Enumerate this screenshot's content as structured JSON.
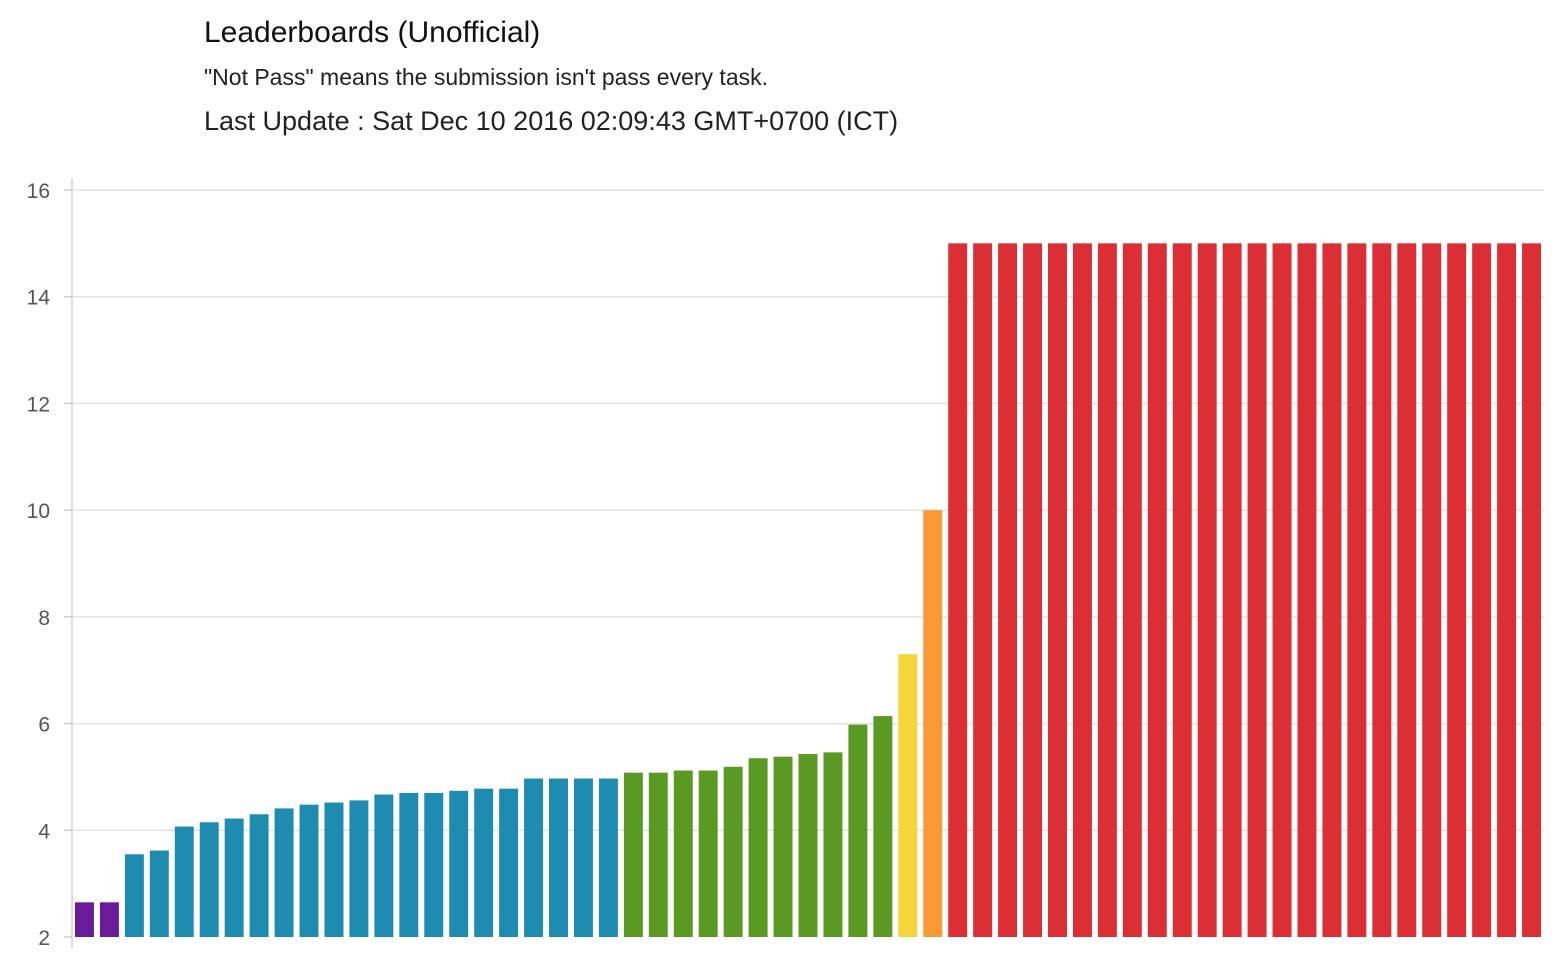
{
  "header": {
    "title": "Leaderboards (Unofficial)",
    "subtitle": "\"Not Pass\" means the submission isn't pass every task.",
    "last_update": "Last Update : Sat Dec 10 2016 02:09:43 GMT+0700 (ICT)"
  },
  "chart_data": {
    "type": "bar",
    "title": "",
    "xlabel": "",
    "ylabel": "",
    "ylim": [
      2,
      16
    ],
    "yticks": [
      2,
      4,
      6,
      8,
      10,
      12,
      14,
      16
    ],
    "grid": true,
    "legend": "none",
    "values": [
      2.65,
      2.65,
      3.55,
      3.62,
      4.07,
      4.15,
      4.22,
      4.3,
      4.41,
      4.48,
      4.52,
      4.56,
      4.67,
      4.7,
      4.7,
      4.74,
      4.78,
      4.78,
      4.97,
      4.97,
      4.97,
      4.97,
      5.08,
      5.08,
      5.12,
      5.12,
      5.19,
      5.35,
      5.38,
      5.43,
      5.46,
      5.98,
      6.14,
      7.3,
      10.0,
      15,
      15,
      15,
      15,
      15,
      15,
      15,
      15,
      15,
      15,
      15,
      15,
      15,
      15,
      15,
      15,
      15,
      15,
      15,
      15,
      15,
      15,
      15,
      15
    ],
    "colors": [
      "#6a1b9a",
      "#6a1b9a",
      "#1e8bb0",
      "#1e8bb0",
      "#1e8bb0",
      "#1e8bb0",
      "#1e8bb0",
      "#1e8bb0",
      "#1e8bb0",
      "#1e8bb0",
      "#1e8bb0",
      "#1e8bb0",
      "#1e8bb0",
      "#1e8bb0",
      "#1e8bb0",
      "#1e8bb0",
      "#1e8bb0",
      "#1e8bb0",
      "#1e8bb0",
      "#1e8bb0",
      "#1e8bb0",
      "#1e8bb0",
      "#5a9a22",
      "#5a9a22",
      "#5a9a22",
      "#5a9a22",
      "#5a9a22",
      "#5a9a22",
      "#5a9a22",
      "#5a9a22",
      "#5a9a22",
      "#5a9a22",
      "#5a9a22",
      "#f4d63a",
      "#fa9a35",
      "#dc2f35",
      "#dc2f35",
      "#dc2f35",
      "#dc2f35",
      "#dc2f35",
      "#dc2f35",
      "#dc2f35",
      "#dc2f35",
      "#dc2f35",
      "#dc2f35",
      "#dc2f35",
      "#dc2f35",
      "#dc2f35",
      "#dc2f35",
      "#dc2f35",
      "#dc2f35",
      "#dc2f35",
      "#dc2f35",
      "#dc2f35",
      "#dc2f35",
      "#dc2f35",
      "#dc2f35",
      "#dc2f35",
      "#dc2f35"
    ]
  }
}
